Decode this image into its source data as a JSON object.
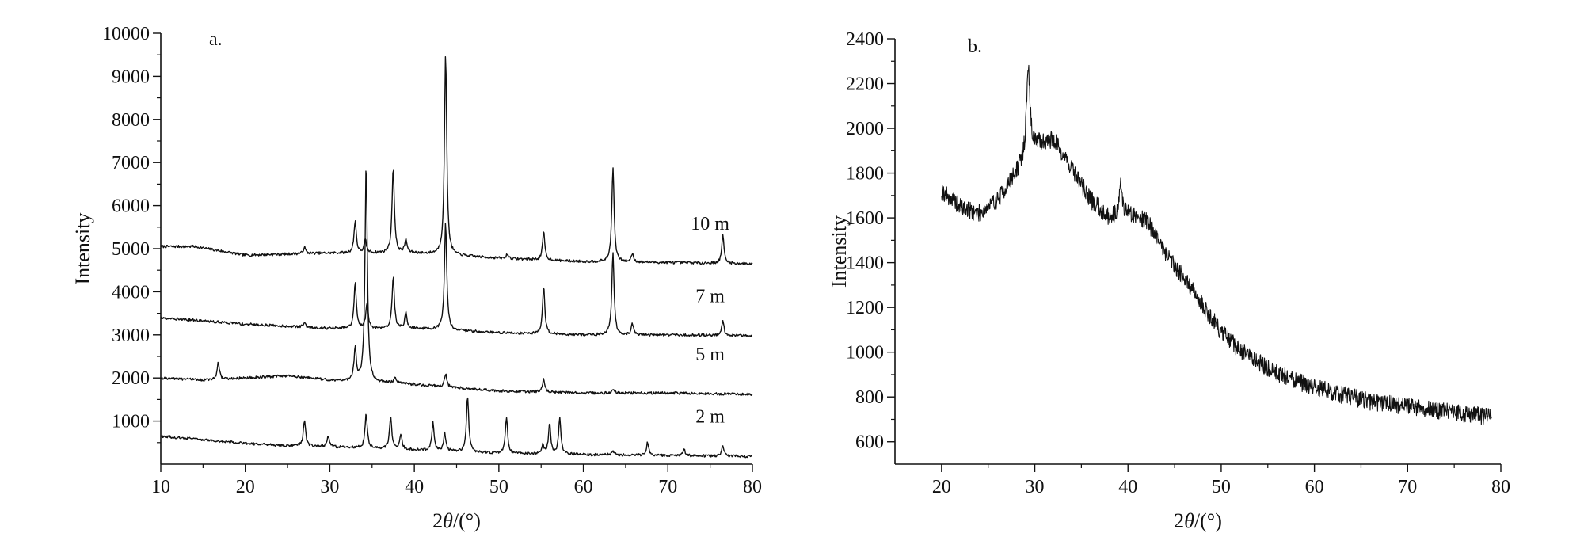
{
  "figure": {
    "panels": [
      "a.",
      "b."
    ]
  },
  "chart_data": [
    {
      "type": "line",
      "panel": "a.",
      "xlabel": "2θ/(°)",
      "xlabel_parts": [
        "2",
        "θ",
        "/(°)"
      ],
      "ylabel": "Intensity",
      "xlim": [
        10,
        80
      ],
      "ylim": [
        0,
        10000
      ],
      "xticks": [
        10,
        20,
        30,
        40,
        50,
        60,
        70,
        80
      ],
      "yticks": [
        1000,
        2000,
        3000,
        4000,
        5000,
        6000,
        7000,
        8000,
        9000,
        10000
      ],
      "grid": false,
      "legend": "none",
      "series": [
        {
          "name": "10 m",
          "baseline": [
            [
              10,
              5050
            ],
            [
              14,
              5050
            ],
            [
              20,
              4850
            ],
            [
              30,
              4900
            ],
            [
              40,
              4900
            ],
            [
              50,
              4780
            ],
            [
              60,
              4700
            ],
            [
              70,
              4680
            ],
            [
              80,
              4650
            ]
          ],
          "peaks": [
            [
              27,
              150
            ],
            [
              33,
              750
            ],
            [
              34.2,
              300
            ],
            [
              37.5,
              2000
            ],
            [
              39,
              300
            ],
            [
              43.7,
              4700
            ],
            [
              51,
              100
            ],
            [
              55.3,
              650
            ],
            [
              63.5,
              2200
            ],
            [
              65.8,
              200
            ],
            [
              76.5,
              650
            ]
          ],
          "label_x": 75
        },
        {
          "name": "7 m",
          "baseline": [
            [
              10,
              3400
            ],
            [
              20,
              3250
            ],
            [
              30,
              3150
            ],
            [
              40,
              3150
            ],
            [
              50,
              3050
            ],
            [
              60,
              3000
            ],
            [
              70,
              3000
            ],
            [
              80,
              2980
            ]
          ],
          "peaks": [
            [
              27,
              100
            ],
            [
              33,
              1050
            ],
            [
              34.4,
              600
            ],
            [
              37.5,
              1200
            ],
            [
              39,
              350
            ],
            [
              43.7,
              2500
            ],
            [
              55.3,
              1100
            ],
            [
              63.5,
              1900
            ],
            [
              65.8,
              250
            ],
            [
              76.5,
              350
            ]
          ],
          "label_x": 75
        },
        {
          "name": "5 m",
          "baseline": [
            [
              10,
              2000
            ],
            [
              15,
              1950
            ],
            [
              20,
              2000
            ],
            [
              25,
              2050
            ],
            [
              30,
              1950
            ],
            [
              40,
              1850
            ],
            [
              50,
              1700
            ],
            [
              60,
              1650
            ],
            [
              70,
              1650
            ],
            [
              80,
              1620
            ]
          ],
          "peaks": [
            [
              16.8,
              400
            ],
            [
              33,
              750
            ],
            [
              34.3,
              5100
            ],
            [
              37.7,
              150
            ],
            [
              43.7,
              300
            ],
            [
              55.3,
              300
            ],
            [
              63.5,
              100
            ]
          ],
          "label_x": 75
        },
        {
          "name": "2 m",
          "baseline": [
            [
              10,
              650
            ],
            [
              20,
              480
            ],
            [
              25,
              430
            ],
            [
              30,
              400
            ],
            [
              40,
              330
            ],
            [
              50,
              250
            ],
            [
              60,
              220
            ],
            [
              70,
              200
            ],
            [
              80,
              180
            ]
          ],
          "peaks": [
            [
              27,
              600
            ],
            [
              29.8,
              250
            ],
            [
              34.3,
              800
            ],
            [
              37.2,
              750
            ],
            [
              38.4,
              350
            ],
            [
              42.2,
              650
            ],
            [
              43.6,
              400
            ],
            [
              46.3,
              1300
            ],
            [
              50.9,
              850
            ],
            [
              55.2,
              200
            ],
            [
              56,
              700
            ],
            [
              57.2,
              850
            ],
            [
              63.5,
              100
            ],
            [
              67.6,
              300
            ],
            [
              71.9,
              150
            ],
            [
              76.5,
              250
            ]
          ],
          "label_x": 75
        }
      ]
    },
    {
      "type": "line",
      "panel": "b.",
      "xlabel": "2θ/(°)",
      "xlabel_parts": [
        "2",
        "θ",
        "/(°)"
      ],
      "ylabel": "Intensity",
      "xlim": [
        15,
        80
      ],
      "ylim": [
        500,
        2400
      ],
      "xticks": [
        20,
        30,
        40,
        50,
        60,
        70,
        80
      ],
      "yticks": [
        600,
        800,
        1000,
        1200,
        1400,
        1600,
        1800,
        2000,
        2200,
        2400
      ],
      "grid": false,
      "legend": "none",
      "series": [
        {
          "name": "",
          "x_range": [
            20,
            79
          ],
          "baseline": [
            [
              20,
              1720
            ],
            [
              22,
              1650
            ],
            [
              24,
              1620
            ],
            [
              26,
              1680
            ],
            [
              28,
              1800
            ],
            [
              30,
              1920
            ],
            [
              32,
              1950
            ],
            [
              34,
              1820
            ],
            [
              36,
              1680
            ],
            [
              38,
              1600
            ],
            [
              40,
              1620
            ],
            [
              42,
              1590
            ],
            [
              44,
              1450
            ],
            [
              46,
              1330
            ],
            [
              48,
              1210
            ],
            [
              50,
              1090
            ],
            [
              52,
              1010
            ],
            [
              55,
              930
            ],
            [
              58,
              870
            ],
            [
              62,
              820
            ],
            [
              66,
              780
            ],
            [
              70,
              760
            ],
            [
              75,
              730
            ],
            [
              79,
              710
            ]
          ],
          "peaks": [
            [
              29.3,
              400
            ],
            [
              39.2,
              130
            ]
          ],
          "noise": 40
        }
      ]
    }
  ]
}
